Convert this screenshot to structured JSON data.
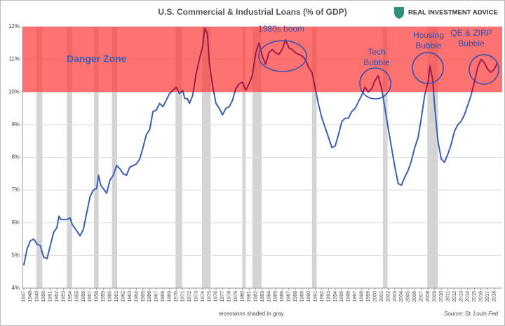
{
  "chart_data": {
    "type": "line",
    "title": "U.S. Commercial & Industrial Loans (% of GDP)",
    "logo": "REAL INVESTMENT ADVICE",
    "footnote": "recessions shaded in gray",
    "source": "Source: St. Louis Fed",
    "color": "#3a5fb5",
    "danger_color": "#9b1f4a",
    "danger_zone": {
      "label": "Danger Zone",
      "range": [
        10,
        12
      ]
    },
    "annotations": [
      {
        "lines": [
          "1980s boom"
        ]
      },
      {
        "lines": [
          "Tech",
          "Bubble"
        ]
      },
      {
        "lines": [
          "Housing",
          "Bubble"
        ]
      },
      {
        "lines": [
          "QE & ZIRP",
          "Bubble"
        ]
      }
    ],
    "recessions": [
      [
        1948.9,
        1949.8
      ],
      [
        1953.5,
        1954.3
      ],
      [
        1957.6,
        1958.3
      ],
      [
        1960.3,
        1961.1
      ],
      [
        1969.9,
        1970.9
      ],
      [
        1973.9,
        1975.2
      ],
      [
        1980.0,
        1980.5
      ],
      [
        1981.5,
        1982.9
      ],
      [
        1990.5,
        1991.2
      ],
      [
        2001.2,
        2001.9
      ],
      [
        2007.9,
        2009.5
      ]
    ],
    "x": [
      1947,
      1947.5,
      1948,
      1948.5,
      1949,
      1949.5,
      1950,
      1950.5,
      1951,
      1951.5,
      1952,
      1952.3,
      1952.6,
      1953,
      1953.5,
      1954,
      1954.3,
      1955,
      1955.5,
      1956,
      1956.5,
      1957,
      1957.5,
      1958,
      1958.3,
      1958.6,
      1959,
      1959.5,
      1960,
      1960.5,
      1961,
      1961.5,
      1962,
      1962.5,
      1963,
      1963.5,
      1964,
      1964.5,
      1965,
      1965.5,
      1966,
      1966.5,
      1967,
      1967.5,
      1968,
      1968.5,
      1969,
      1969.5,
      1970,
      1970.5,
      1971,
      1971.3,
      1971.7,
      1972,
      1972.5,
      1973,
      1973.5,
      1974,
      1974.3,
      1974.7,
      1975,
      1975.5,
      1976,
      1976.5,
      1977,
      1977.5,
      1978,
      1978.5,
      1979,
      1979.5,
      1980,
      1980.5,
      1981,
      1981.5,
      1982,
      1982.5,
      1983,
      1983.5,
      1984,
      1984.5,
      1985,
      1985.5,
      1986,
      1986.5,
      1987,
      1987.5,
      1988,
      1988.5,
      1989,
      1989.5,
      1990,
      1990.5,
      1991,
      1991.5,
      1992,
      1992.5,
      1993,
      1993.5,
      1994,
      1994.5,
      1995,
      1995.5,
      1996,
      1996.5,
      1997,
      1997.5,
      1998,
      1998.5,
      1999,
      1999.5,
      2000,
      2000.5,
      2001,
      2001.5,
      2002,
      2002.5,
      2003,
      2003.5,
      2004,
      2004.5,
      2005,
      2005.5,
      2006,
      2006.5,
      2007,
      2007.5,
      2008,
      2008.3,
      2008.7,
      2009,
      2009.5,
      2010,
      2010.5,
      2011,
      2011.5,
      2012,
      2012.5,
      2013,
      2013.5,
      2014,
      2014.5,
      2015,
      2015.5,
      2016,
      2016.5,
      2017,
      2017.5,
      2018,
      2018.5
    ],
    "values": [
      4.7,
      5.2,
      5.45,
      5.5,
      5.35,
      5.3,
      4.95,
      4.9,
      5.3,
      5.7,
      5.85,
      6.2,
      6.1,
      6.1,
      6.1,
      6.15,
      5.95,
      5.75,
      5.6,
      5.8,
      6.3,
      6.8,
      7.0,
      7.05,
      7.45,
      7.15,
      7.05,
      6.9,
      7.3,
      7.45,
      7.75,
      7.65,
      7.5,
      7.45,
      7.7,
      7.75,
      7.8,
      7.95,
      8.3,
      8.7,
      8.85,
      9.4,
      9.45,
      9.65,
      9.55,
      9.75,
      9.95,
      10.05,
      10.15,
      9.95,
      10.05,
      9.8,
      9.8,
      9.65,
      9.9,
      10.55,
      11.0,
      11.4,
      11.95,
      11.8,
      10.9,
      10.2,
      9.65,
      9.5,
      9.3,
      9.5,
      9.55,
      9.75,
      10.1,
      10.25,
      10.3,
      10.05,
      10.25,
      10.5,
      11.2,
      11.5,
      11.1,
      10.85,
      11.2,
      11.3,
      11.2,
      11.15,
      11.3,
      11.6,
      11.35,
      11.3,
      11.2,
      11.15,
      11.1,
      11.0,
      10.75,
      10.6,
      10.1,
      9.6,
      9.2,
      8.9,
      8.6,
      8.3,
      8.35,
      8.7,
      9.1,
      9.2,
      9.2,
      9.4,
      9.5,
      9.7,
      9.9,
      10.15,
      10.0,
      10.1,
      10.35,
      10.5,
      10.1,
      9.5,
      8.9,
      8.3,
      7.7,
      7.2,
      7.15,
      7.4,
      7.6,
      7.9,
      8.3,
      8.6,
      9.2,
      9.9,
      10.3,
      10.8,
      10.4,
      9.6,
      8.5,
      7.95,
      7.85,
      8.1,
      8.4,
      8.8,
      9.0,
      9.1,
      9.3,
      9.6,
      9.9,
      10.3,
      10.75,
      11.0,
      10.9,
      10.7,
      10.6,
      10.7,
      10.9
    ],
    "xlim": [
      1946.8,
      2019.2
    ],
    "xticks": [
      1947,
      1948,
      1949,
      1950,
      1951,
      1952,
      1953,
      1954,
      1955,
      1956,
      1957,
      1958,
      1959,
      1960,
      1961,
      1962,
      1963,
      1964,
      1965,
      1966,
      1967,
      1968,
      1969,
      1970,
      1971,
      1972,
      1973,
      1974,
      1975,
      1976,
      1977,
      1978,
      1979,
      1980,
      1981,
      1982,
      1983,
      1984,
      1985,
      1986,
      1987,
      1988,
      1989,
      1990,
      1991,
      1992,
      1993,
      1994,
      1995,
      1996,
      1997,
      1998,
      1999,
      2000,
      2001,
      2002,
      2003,
      2004,
      2005,
      2006,
      2007,
      2008,
      2009,
      2010,
      2011,
      2012,
      2013,
      2014,
      2015,
      2016,
      2017,
      2018
    ],
    "ylim": [
      4,
      12
    ],
    "yticks": [
      {
        "value": 4,
        "label": "4%"
      },
      {
        "value": 5,
        "label": "5%"
      },
      {
        "value": 6,
        "label": "6%"
      },
      {
        "value": 7,
        "label": "7%"
      },
      {
        "value": 8,
        "label": "8%"
      },
      {
        "value": 9,
        "label": "9%"
      },
      {
        "value": 10,
        "label": "10%"
      },
      {
        "value": 11,
        "label": "11%"
      },
      {
        "value": 12,
        "label": "12%"
      }
    ],
    "grid": true
  }
}
